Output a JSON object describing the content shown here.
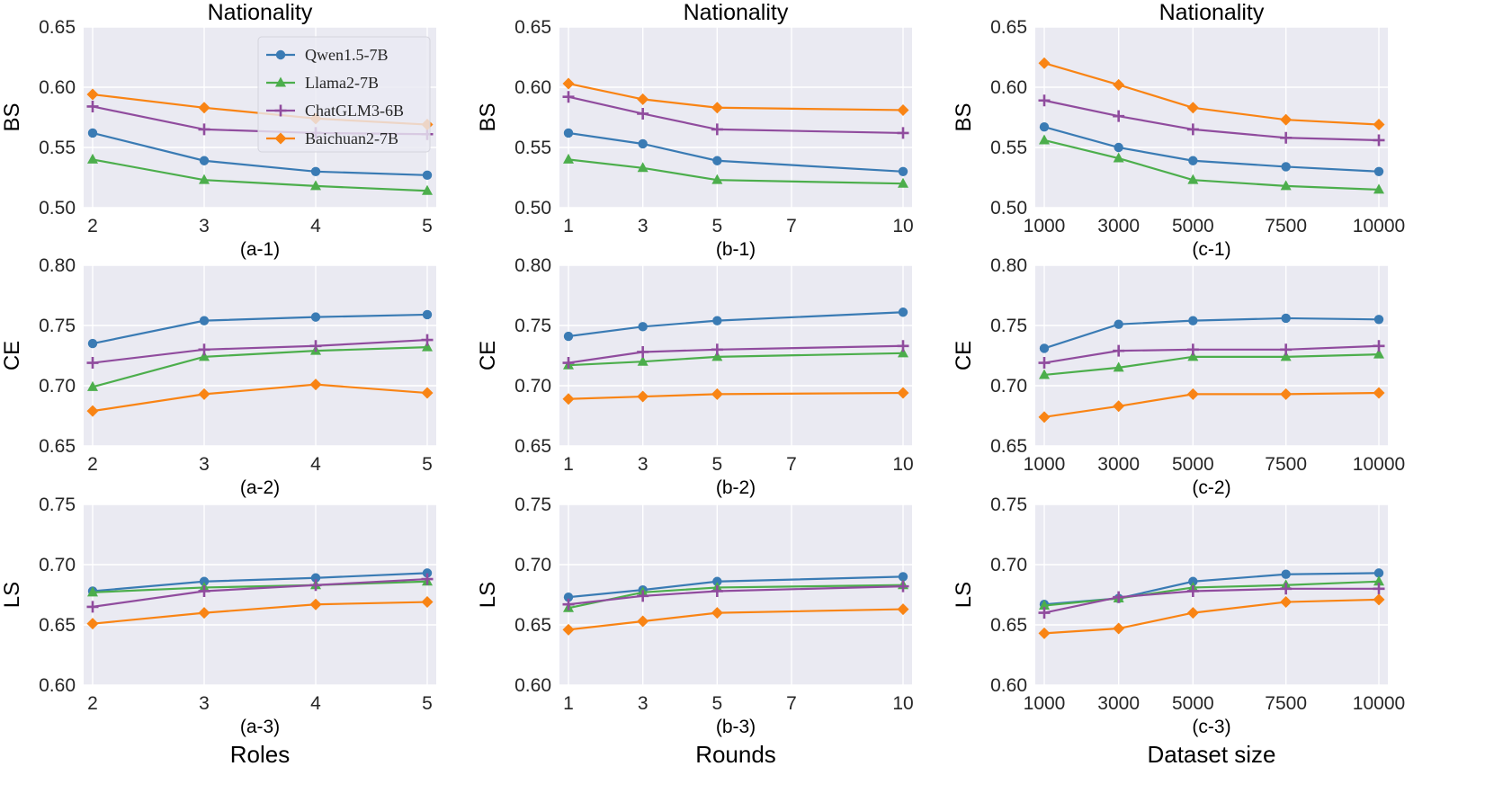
{
  "legend": {
    "entries": [
      "Qwen1.5-7B",
      "Llama2-7B",
      "ChatGLM3-6B",
      "Baichuan2-7B"
    ]
  },
  "series_styles": [
    {
      "name": "Qwen1.5-7B",
      "color": "#3a7bb4",
      "marker": "circle"
    },
    {
      "name": "Llama2-7B",
      "color": "#4cae4c",
      "marker": "triangle"
    },
    {
      "name": "ChatGLM3-6B",
      "color": "#904c9e",
      "marker": "plus"
    },
    {
      "name": "Baichuan2-7B",
      "color": "#f98414",
      "marker": "diamond"
    }
  ],
  "columns": [
    {
      "title": "Nationality",
      "xlabel": "Roles"
    },
    {
      "title": "Nationality",
      "xlabel": "Rounds"
    },
    {
      "title": "Nationality",
      "xlabel": "Dataset size"
    }
  ],
  "chart_data": [
    {
      "id": "a-1",
      "type": "line",
      "title": "Nationality",
      "subtitle": "(a-1)",
      "xlabel": "",
      "ylabel": "BS",
      "x": [
        2,
        3,
        4,
        5
      ],
      "xticks": [
        2,
        3,
        4,
        5
      ],
      "xticklabels": [
        "2",
        "3",
        "4",
        "5"
      ],
      "xlim": [
        2,
        5
      ],
      "ylim": [
        0.5,
        0.65
      ],
      "yticks": [
        0.5,
        0.55,
        0.6,
        0.65
      ],
      "yticklabels": [
        "0.50",
        "0.55",
        "0.60",
        "0.65"
      ],
      "legend": "top-right",
      "series": [
        {
          "name": "Qwen1.5-7B",
          "values": [
            0.562,
            0.539,
            0.53,
            0.527
          ]
        },
        {
          "name": "Llama2-7B",
          "values": [
            0.54,
            0.523,
            0.518,
            0.514
          ]
        },
        {
          "name": "ChatGLM3-6B",
          "values": [
            0.584,
            0.565,
            0.562,
            0.561
          ]
        },
        {
          "name": "Baichuan2-7B",
          "values": [
            0.594,
            0.583,
            0.574,
            0.569
          ]
        }
      ]
    },
    {
      "id": "b-1",
      "type": "line",
      "title": "Nationality",
      "subtitle": "(b-1)",
      "xlabel": "",
      "ylabel": "BS",
      "x": [
        1,
        3,
        5,
        10
      ],
      "xticks": [
        1,
        3,
        5,
        7,
        10
      ],
      "xticklabels": [
        "1",
        "3",
        "5",
        "7",
        "10"
      ],
      "xlim": [
        1,
        10
      ],
      "ylim": [
        0.5,
        0.65
      ],
      "yticks": [
        0.5,
        0.55,
        0.6,
        0.65
      ],
      "yticklabels": [
        "0.50",
        "0.55",
        "0.60",
        "0.65"
      ],
      "series": [
        {
          "name": "Qwen1.5-7B",
          "values": [
            0.562,
            0.553,
            0.539,
            0.53
          ]
        },
        {
          "name": "Llama2-7B",
          "values": [
            0.54,
            0.533,
            0.523,
            0.52
          ]
        },
        {
          "name": "ChatGLM3-6B",
          "values": [
            0.592,
            0.578,
            0.565,
            0.562
          ]
        },
        {
          "name": "Baichuan2-7B",
          "values": [
            0.603,
            0.59,
            0.583,
            0.581
          ]
        }
      ]
    },
    {
      "id": "c-1",
      "type": "line",
      "title": "Nationality",
      "subtitle": "(c-1)",
      "xlabel": "",
      "ylabel": "BS",
      "x": [
        1000,
        3000,
        5000,
        7500,
        10000
      ],
      "xticks": [
        1000,
        3000,
        5000,
        7500,
        10000
      ],
      "xticklabels": [
        "1000",
        "3000",
        "5000",
        "7500",
        "10000"
      ],
      "xlim": [
        1000,
        10000
      ],
      "ylim": [
        0.5,
        0.65
      ],
      "yticks": [
        0.5,
        0.55,
        0.6,
        0.65
      ],
      "yticklabels": [
        "0.50",
        "0.55",
        "0.60",
        "0.65"
      ],
      "series": [
        {
          "name": "Qwen1.5-7B",
          "values": [
            0.567,
            0.55,
            0.539,
            0.534,
            0.53
          ]
        },
        {
          "name": "Llama2-7B",
          "values": [
            0.556,
            0.541,
            0.523,
            0.518,
            0.515
          ]
        },
        {
          "name": "ChatGLM3-6B",
          "values": [
            0.589,
            0.576,
            0.565,
            0.558,
            0.556
          ]
        },
        {
          "name": "Baichuan2-7B",
          "values": [
            0.62,
            0.602,
            0.583,
            0.573,
            0.569
          ]
        }
      ]
    },
    {
      "id": "a-2",
      "type": "line",
      "title": "",
      "subtitle": "(a-2)",
      "xlabel": "",
      "ylabel": "CE",
      "x": [
        2,
        3,
        4,
        5
      ],
      "xticks": [
        2,
        3,
        4,
        5
      ],
      "xticklabels": [
        "2",
        "3",
        "4",
        "5"
      ],
      "xlim": [
        2,
        5
      ],
      "ylim": [
        0.65,
        0.8
      ],
      "yticks": [
        0.65,
        0.7,
        0.75,
        0.8
      ],
      "yticklabels": [
        "0.65",
        "0.70",
        "0.75",
        "0.80"
      ],
      "series": [
        {
          "name": "Qwen1.5-7B",
          "values": [
            0.735,
            0.754,
            0.757,
            0.759
          ]
        },
        {
          "name": "Llama2-7B",
          "values": [
            0.699,
            0.724,
            0.729,
            0.732
          ]
        },
        {
          "name": "ChatGLM3-6B",
          "values": [
            0.719,
            0.73,
            0.733,
            0.738
          ]
        },
        {
          "name": "Baichuan2-7B",
          "values": [
            0.679,
            0.693,
            0.701,
            0.694
          ]
        }
      ]
    },
    {
      "id": "b-2",
      "type": "line",
      "title": "",
      "subtitle": "(b-2)",
      "xlabel": "",
      "ylabel": "CE",
      "x": [
        1,
        3,
        5,
        10
      ],
      "xticks": [
        1,
        3,
        5,
        7,
        10
      ],
      "xticklabels": [
        "1",
        "3",
        "5",
        "7",
        "10"
      ],
      "xlim": [
        1,
        10
      ],
      "ylim": [
        0.65,
        0.8
      ],
      "yticks": [
        0.65,
        0.7,
        0.75,
        0.8
      ],
      "yticklabels": [
        "0.65",
        "0.70",
        "0.75",
        "0.80"
      ],
      "series": [
        {
          "name": "Qwen1.5-7B",
          "values": [
            0.741,
            0.749,
            0.754,
            0.761
          ]
        },
        {
          "name": "Llama2-7B",
          "values": [
            0.717,
            0.72,
            0.724,
            0.727
          ]
        },
        {
          "name": "ChatGLM3-6B",
          "values": [
            0.719,
            0.728,
            0.73,
            0.733
          ]
        },
        {
          "name": "Baichuan2-7B",
          "values": [
            0.689,
            0.691,
            0.693,
            0.694
          ]
        }
      ]
    },
    {
      "id": "c-2",
      "type": "line",
      "title": "",
      "subtitle": "(c-2)",
      "xlabel": "",
      "ylabel": "CE",
      "x": [
        1000,
        3000,
        5000,
        7500,
        10000
      ],
      "xticks": [
        1000,
        3000,
        5000,
        7500,
        10000
      ],
      "xticklabels": [
        "1000",
        "3000",
        "5000",
        "7500",
        "10000"
      ],
      "xlim": [
        1000,
        10000
      ],
      "ylim": [
        0.65,
        0.8
      ],
      "yticks": [
        0.65,
        0.7,
        0.75,
        0.8
      ],
      "yticklabels": [
        "0.65",
        "0.70",
        "0.75",
        "0.80"
      ],
      "series": [
        {
          "name": "Qwen1.5-7B",
          "values": [
            0.731,
            0.751,
            0.754,
            0.756,
            0.755
          ]
        },
        {
          "name": "Llama2-7B",
          "values": [
            0.709,
            0.715,
            0.724,
            0.724,
            0.726
          ]
        },
        {
          "name": "ChatGLM3-6B",
          "values": [
            0.719,
            0.729,
            0.73,
            0.73,
            0.733
          ]
        },
        {
          "name": "Baichuan2-7B",
          "values": [
            0.674,
            0.683,
            0.693,
            0.693,
            0.694
          ]
        }
      ]
    },
    {
      "id": "a-3",
      "type": "line",
      "title": "",
      "subtitle": "(a-3)",
      "xlabel": "Roles",
      "ylabel": "LS",
      "x": [
        2,
        3,
        4,
        5
      ],
      "xticks": [
        2,
        3,
        4,
        5
      ],
      "xticklabels": [
        "2",
        "3",
        "4",
        "5"
      ],
      "xlim": [
        2,
        5
      ],
      "ylim": [
        0.6,
        0.75
      ],
      "yticks": [
        0.6,
        0.65,
        0.7,
        0.75
      ],
      "yticklabels": [
        "0.60",
        "0.65",
        "0.70",
        "0.75"
      ],
      "series": [
        {
          "name": "Qwen1.5-7B",
          "values": [
            0.678,
            0.686,
            0.689,
            0.693
          ]
        },
        {
          "name": "Llama2-7B",
          "values": [
            0.677,
            0.681,
            0.683,
            0.686
          ]
        },
        {
          "name": "ChatGLM3-6B",
          "values": [
            0.665,
            0.678,
            0.683,
            0.688
          ]
        },
        {
          "name": "Baichuan2-7B",
          "values": [
            0.651,
            0.66,
            0.667,
            0.669
          ]
        }
      ]
    },
    {
      "id": "b-3",
      "type": "line",
      "title": "",
      "subtitle": "(b-3)",
      "xlabel": "Rounds",
      "ylabel": "LS",
      "x": [
        1,
        3,
        5,
        10
      ],
      "xticks": [
        1,
        3,
        5,
        7,
        10
      ],
      "xticklabels": [
        "1",
        "3",
        "5",
        "7",
        "10"
      ],
      "xlim": [
        1,
        10
      ],
      "ylim": [
        0.6,
        0.75
      ],
      "yticks": [
        0.6,
        0.65,
        0.7,
        0.75
      ],
      "yticklabels": [
        "0.60",
        "0.65",
        "0.70",
        "0.75"
      ],
      "series": [
        {
          "name": "Qwen1.5-7B",
          "values": [
            0.673,
            0.679,
            0.686,
            0.69
          ]
        },
        {
          "name": "Llama2-7B",
          "values": [
            0.664,
            0.677,
            0.681,
            0.683
          ]
        },
        {
          "name": "ChatGLM3-6B",
          "values": [
            0.667,
            0.674,
            0.678,
            0.682
          ]
        },
        {
          "name": "Baichuan2-7B",
          "values": [
            0.646,
            0.653,
            0.66,
            0.663
          ]
        }
      ]
    },
    {
      "id": "c-3",
      "type": "line",
      "title": "",
      "subtitle": "(c-3)",
      "xlabel": "Dataset size",
      "ylabel": "LS",
      "x": [
        1000,
        3000,
        5000,
        7500,
        10000
      ],
      "xticks": [
        1000,
        3000,
        5000,
        7500,
        10000
      ],
      "xticklabels": [
        "1000",
        "3000",
        "5000",
        "7500",
        "10000"
      ],
      "xlim": [
        1000,
        10000
      ],
      "ylim": [
        0.6,
        0.75
      ],
      "yticks": [
        0.6,
        0.65,
        0.7,
        0.75
      ],
      "yticklabels": [
        "0.60",
        "0.65",
        "0.70",
        "0.75"
      ],
      "series": [
        {
          "name": "Qwen1.5-7B",
          "values": [
            0.667,
            0.672,
            0.686,
            0.692,
            0.693
          ]
        },
        {
          "name": "Llama2-7B",
          "values": [
            0.666,
            0.672,
            0.681,
            0.683,
            0.686
          ]
        },
        {
          "name": "ChatGLM3-6B",
          "values": [
            0.66,
            0.673,
            0.678,
            0.68,
            0.68
          ]
        },
        {
          "name": "Baichuan2-7B",
          "values": [
            0.643,
            0.647,
            0.66,
            0.669,
            0.671
          ]
        }
      ]
    }
  ]
}
